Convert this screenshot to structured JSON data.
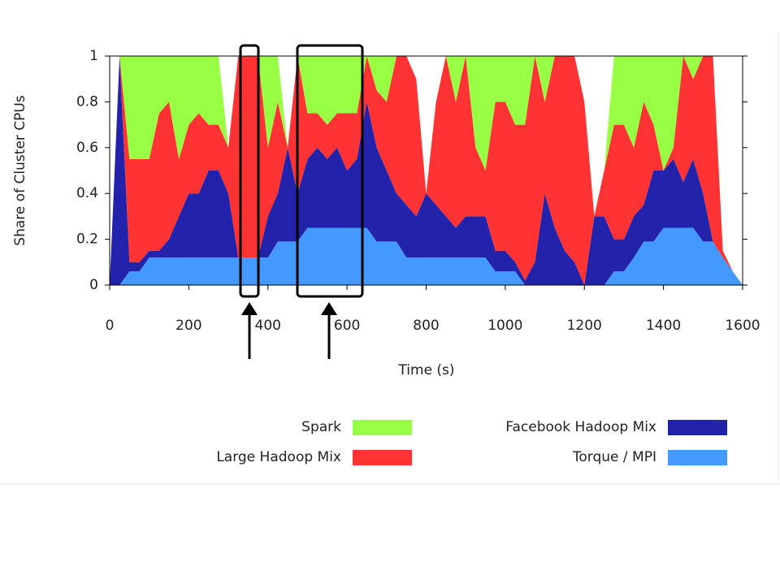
{
  "chart_data": {
    "type": "stacked_area",
    "xlabel": "Time (s)",
    "ylabel": "Share of Cluster CPUs",
    "x": [
      0,
      25,
      50,
      75,
      100,
      125,
      150,
      175,
      200,
      225,
      250,
      275,
      300,
      325,
      350,
      375,
      400,
      425,
      450,
      475,
      500,
      525,
      550,
      575,
      600,
      625,
      650,
      675,
      700,
      725,
      750,
      775,
      800,
      825,
      850,
      875,
      900,
      925,
      950,
      975,
      1000,
      1025,
      1050,
      1075,
      1100,
      1125,
      1150,
      1175,
      1200,
      1225,
      1250,
      1275,
      1300,
      1325,
      1350,
      1375,
      1400,
      1425,
      1450,
      1475,
      1500,
      1525,
      1550,
      1575,
      1600
    ],
    "series": [
      {
        "name": "Torque / MPI",
        "color": "#4499ff",
        "values": [
          0,
          0,
          0.06,
          0.06,
          0.12,
          0.12,
          0.12,
          0.12,
          0.12,
          0.12,
          0.12,
          0.12,
          0.12,
          0.12,
          0.12,
          0.12,
          0.12,
          0.19,
          0.19,
          0.19,
          0.25,
          0.25,
          0.25,
          0.25,
          0.25,
          0.25,
          0.25,
          0.19,
          0.19,
          0.19,
          0.12,
          0.12,
          0.12,
          0.12,
          0.12,
          0.12,
          0.12,
          0.12,
          0.12,
          0.06,
          0.06,
          0.06,
          0,
          0,
          0,
          0,
          0,
          0,
          0,
          0,
          0,
          0.06,
          0.06,
          0.12,
          0.19,
          0.19,
          0.25,
          0.25,
          0.25,
          0.25,
          0.19,
          0.19,
          0.12,
          0.06,
          0
        ]
      },
      {
        "name": "Facebook Hadoop Mix",
        "color": "#2222aa",
        "values": [
          0,
          1,
          0.04,
          0.04,
          0.03,
          0.03,
          0.08,
          0.18,
          0.28,
          0.28,
          0.38,
          0.38,
          0.28,
          0,
          0,
          0,
          0.18,
          0.21,
          0.41,
          0.21,
          0.3,
          0.35,
          0.3,
          0.35,
          0.25,
          0.3,
          0.55,
          0.41,
          0.31,
          0.21,
          0.23,
          0.18,
          0.28,
          0.23,
          0.18,
          0.13,
          0.18,
          0.18,
          0.18,
          0.09,
          0.09,
          0.04,
          0.02,
          0.1,
          0.4,
          0.25,
          0.15,
          0.1,
          0,
          0.3,
          0.3,
          0.14,
          0.14,
          0.18,
          0.16,
          0.31,
          0.25,
          0.3,
          0.2,
          0.3,
          0.21,
          0,
          0,
          0,
          0
        ]
      },
      {
        "name": "Large Hadoop Mix",
        "color": "#ff3333",
        "values": [
          0,
          0,
          0.45,
          0.45,
          0.4,
          0.6,
          0.6,
          0.25,
          0.3,
          0.35,
          0.2,
          0.2,
          0.2,
          0.88,
          0.88,
          0.88,
          0.3,
          0.4,
          0,
          0.6,
          0.2,
          0.15,
          0.15,
          0.15,
          0.25,
          0.2,
          0.2,
          0.25,
          0.3,
          0.6,
          0.65,
          0.6,
          0,
          0.45,
          0.7,
          0.55,
          0.7,
          0.3,
          0.2,
          0.65,
          0.65,
          0.6,
          0.68,
          0.9,
          0.4,
          0.75,
          0.85,
          0.9,
          0.8,
          0,
          0.2,
          0.5,
          0.5,
          0.3,
          0.45,
          0.2,
          0,
          0.05,
          0.55,
          0.35,
          0.6,
          0.81,
          0.03,
          0,
          0
        ]
      },
      {
        "name": "Spark",
        "color": "#99ff44",
        "values": [
          0,
          0,
          0.45,
          0.45,
          0.45,
          0.25,
          0.2,
          0.45,
          0.3,
          0.25,
          0.3,
          0.3,
          0,
          0,
          0,
          0,
          0.4,
          0.2,
          0,
          0,
          0.25,
          0.25,
          0.3,
          0.25,
          0.25,
          0.25,
          0,
          0.15,
          0.2,
          0,
          0,
          0,
          0,
          0,
          0,
          0.2,
          0,
          0.4,
          0.5,
          0.2,
          0.2,
          0.3,
          0.3,
          0,
          0.2,
          0,
          0,
          0,
          0,
          0,
          0,
          0.3,
          0.3,
          0.4,
          0.2,
          0.3,
          0.5,
          0.4,
          0,
          0.1,
          0,
          0,
          0,
          0,
          0
        ]
      }
    ],
    "xlim": [
      0,
      1600
    ],
    "xticks": [
      0,
      200,
      400,
      600,
      800,
      1000,
      1200,
      1400,
      1600
    ],
    "ylim": [
      0,
      1
    ],
    "yticks": [
      0,
      0.2,
      0.4,
      0.6,
      0.8,
      1
    ]
  }
}
